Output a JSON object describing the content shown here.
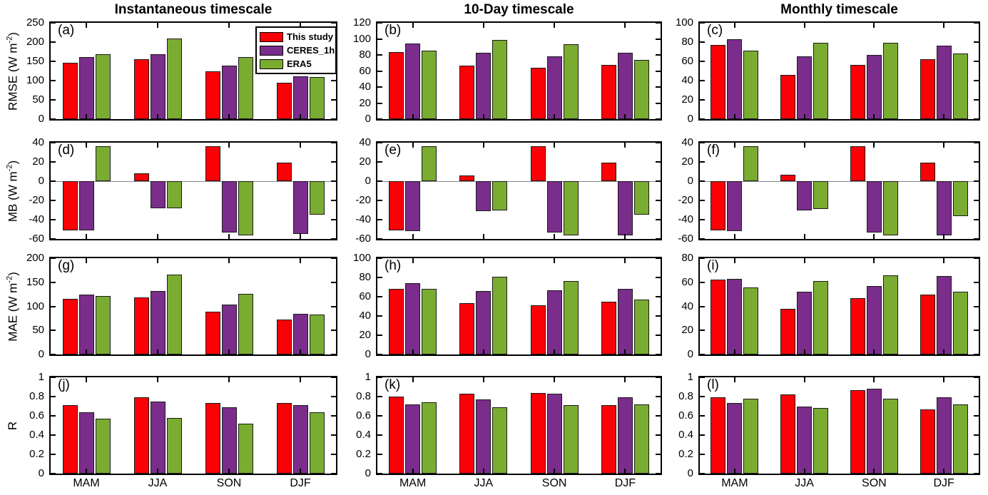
{
  "figure": {
    "columns": [
      {
        "title": "Instantaneous timescale"
      },
      {
        "title": "10-Day timescale"
      },
      {
        "title": "Monthly timescale"
      }
    ],
    "row_axis_titles": [
      {
        "text": "RMSE (W m",
        "sup": "-2",
        "end": ")"
      },
      {
        "text": "MB (W m",
        "sup": "-2",
        "end": ")"
      },
      {
        "text": "MAE (W m",
        "sup": "-2",
        "end": ")"
      },
      {
        "text": "R",
        "sup": "",
        "end": ""
      }
    ],
    "legend": {
      "position": "top-right-of-panel-a",
      "entries": [
        {
          "label": "This study",
          "color": "#fb0006"
        },
        {
          "label": "CERES_1h",
          "color": "#7a2d8b"
        },
        {
          "label": "ERA5",
          "color": "#7aac32"
        }
      ]
    }
  },
  "chart_data": [
    {
      "type": "bar",
      "label": "(a)",
      "metric": "RMSE",
      "timescale": "Instantaneous",
      "categories": [
        "MAM",
        "JJA",
        "SON",
        "DJF"
      ],
      "ylim": [
        0,
        250
      ],
      "yticks": [
        "0",
        "50",
        "100",
        "150",
        "200",
        "250"
      ],
      "series": [
        {
          "name": "This study",
          "values": [
            147,
            156,
            124,
            94
          ]
        },
        {
          "name": "CERES_1h",
          "values": [
            161,
            168,
            138,
            112
          ]
        },
        {
          "name": "ERA5",
          "values": [
            168,
            209,
            162,
            109
          ]
        }
      ]
    },
    {
      "type": "bar",
      "label": "(b)",
      "metric": "RMSE",
      "timescale": "10-Day",
      "categories": [
        "MAM",
        "JJA",
        "SON",
        "DJF"
      ],
      "ylim": [
        0,
        120
      ],
      "yticks": [
        "0",
        "20",
        "40",
        "60",
        "80",
        "100",
        "120"
      ],
      "series": [
        {
          "name": "This study",
          "values": [
            84,
            67,
            64,
            68
          ]
        },
        {
          "name": "CERES_1h",
          "values": [
            94,
            83,
            78,
            83
          ]
        },
        {
          "name": "ERA5",
          "values": [
            85,
            99,
            93,
            74
          ]
        }
      ]
    },
    {
      "type": "bar",
      "label": "(c)",
      "metric": "RMSE",
      "timescale": "Monthly",
      "categories": [
        "MAM",
        "JJA",
        "SON",
        "DJF"
      ],
      "ylim": [
        0,
        100
      ],
      "yticks": [
        "0",
        "20",
        "40",
        "60",
        "80",
        "100"
      ],
      "series": [
        {
          "name": "This study",
          "values": [
            77,
            46,
            56,
            62
          ]
        },
        {
          "name": "CERES_1h",
          "values": [
            83,
            65,
            67,
            76
          ]
        },
        {
          "name": "ERA5",
          "values": [
            71,
            79,
            79,
            68
          ]
        }
      ]
    },
    {
      "type": "bar",
      "label": "(d)",
      "metric": "MB",
      "timescale": "Instantaneous",
      "categories": [
        "MAM",
        "JJA",
        "SON",
        "DJF"
      ],
      "ylim": [
        -60,
        40
      ],
      "yticks": [
        "-60",
        "-40",
        "-20",
        "0",
        "20",
        "40"
      ],
      "series": [
        {
          "name": "This study",
          "values": [
            -51,
            8,
            36,
            19
          ]
        },
        {
          "name": "CERES_1h",
          "values": [
            -51,
            -28,
            -53,
            -55
          ]
        },
        {
          "name": "ERA5",
          "values": [
            36,
            -28,
            -56,
            -35
          ]
        }
      ]
    },
    {
      "type": "bar",
      "label": "(e)",
      "metric": "MB",
      "timescale": "10-Day",
      "categories": [
        "MAM",
        "JJA",
        "SON",
        "DJF"
      ],
      "ylim": [
        -60,
        40
      ],
      "yticks": [
        "-60",
        "-40",
        "-20",
        "0",
        "20",
        "40"
      ],
      "series": [
        {
          "name": "This study",
          "values": [
            -51,
            6,
            36,
            19
          ]
        },
        {
          "name": "CERES_1h",
          "values": [
            -52,
            -31,
            -53,
            -56
          ]
        },
        {
          "name": "ERA5",
          "values": [
            36,
            -30,
            -56,
            -35
          ]
        }
      ]
    },
    {
      "type": "bar",
      "label": "(f)",
      "metric": "MB",
      "timescale": "Monthly",
      "categories": [
        "MAM",
        "JJA",
        "SON",
        "DJF"
      ],
      "ylim": [
        -60,
        40
      ],
      "yticks": [
        "-60",
        "-40",
        "-20",
        "0",
        "20",
        "40"
      ],
      "series": [
        {
          "name": "This study",
          "values": [
            -51,
            7,
            36,
            19
          ]
        },
        {
          "name": "CERES_1h",
          "values": [
            -52,
            -30,
            -53,
            -56
          ]
        },
        {
          "name": "ERA5",
          "values": [
            36,
            -29,
            -56,
            -36
          ]
        }
      ]
    },
    {
      "type": "bar",
      "label": "(g)",
      "metric": "MAE",
      "timescale": "Instantaneous",
      "categories": [
        "MAM",
        "JJA",
        "SON",
        "DJF"
      ],
      "ylim": [
        0,
        200
      ],
      "yticks": [
        "0",
        "50",
        "100",
        "150",
        "200"
      ],
      "series": [
        {
          "name": "This study",
          "values": [
            115,
            118,
            89,
            73
          ]
        },
        {
          "name": "CERES_1h",
          "values": [
            125,
            132,
            104,
            85
          ]
        },
        {
          "name": "ERA5",
          "values": [
            122,
            166,
            126,
            83
          ]
        }
      ]
    },
    {
      "type": "bar",
      "label": "(h)",
      "metric": "MAE",
      "timescale": "10-Day",
      "categories": [
        "MAM",
        "JJA",
        "SON",
        "DJF"
      ],
      "ylim": [
        0,
        100
      ],
      "yticks": [
        "0",
        "20",
        "40",
        "60",
        "80",
        "100"
      ],
      "series": [
        {
          "name": "This study",
          "values": [
            68,
            53,
            51,
            55
          ]
        },
        {
          "name": "CERES_1h",
          "values": [
            74,
            66,
            67,
            68
          ]
        },
        {
          "name": "ERA5",
          "values": [
            68,
            81,
            76,
            57
          ]
        }
      ]
    },
    {
      "type": "bar",
      "label": "(i)",
      "metric": "MAE",
      "timescale": "Monthly",
      "categories": [
        "MAM",
        "JJA",
        "SON",
        "DJF"
      ],
      "ylim": [
        0,
        80
      ],
      "yticks": [
        "0",
        "20",
        "40",
        "60",
        "80"
      ],
      "series": [
        {
          "name": "This study",
          "values": [
            62,
            38,
            47,
            50
          ]
        },
        {
          "name": "CERES_1h",
          "values": [
            63,
            52,
            57,
            65
          ]
        },
        {
          "name": "ERA5",
          "values": [
            56,
            61,
            66,
            52
          ]
        }
      ]
    },
    {
      "type": "bar",
      "label": "(j)",
      "metric": "R",
      "timescale": "Instantaneous",
      "categories": [
        "MAM",
        "JJA",
        "SON",
        "DJF"
      ],
      "ylim": [
        0,
        1
      ],
      "yticks": [
        "0",
        "0.2",
        "0.4",
        "0.6",
        "0.8",
        "1"
      ],
      "series": [
        {
          "name": "This study",
          "values": [
            0.71,
            0.79,
            0.73,
            0.73
          ]
        },
        {
          "name": "CERES_1h",
          "values": [
            0.64,
            0.75,
            0.69,
            0.71
          ]
        },
        {
          "name": "ERA5",
          "values": [
            0.57,
            0.58,
            0.52,
            0.64
          ]
        }
      ]
    },
    {
      "type": "bar",
      "label": "(k)",
      "metric": "R",
      "timescale": "10-Day",
      "categories": [
        "MAM",
        "JJA",
        "SON",
        "DJF"
      ],
      "ylim": [
        0,
        1
      ],
      "yticks": [
        "0",
        "0.2",
        "0.4",
        "0.6",
        "0.8",
        "1"
      ],
      "series": [
        {
          "name": "This study",
          "values": [
            0.8,
            0.83,
            0.84,
            0.71
          ]
        },
        {
          "name": "CERES_1h",
          "values": [
            0.72,
            0.77,
            0.83,
            0.79
          ]
        },
        {
          "name": "ERA5",
          "values": [
            0.74,
            0.69,
            0.71,
            0.72
          ]
        }
      ]
    },
    {
      "type": "bar",
      "label": "(l)",
      "metric": "R",
      "timescale": "Monthly",
      "categories": [
        "MAM",
        "JJA",
        "SON",
        "DJF"
      ],
      "ylim": [
        0,
        1
      ],
      "yticks": [
        "0",
        "0.2",
        "0.4",
        "0.6",
        "0.8",
        "1"
      ],
      "series": [
        {
          "name": "This study",
          "values": [
            0.79,
            0.82,
            0.87,
            0.67
          ]
        },
        {
          "name": "CERES_1h",
          "values": [
            0.73,
            0.7,
            0.88,
            0.79
          ]
        },
        {
          "name": "ERA5",
          "values": [
            0.78,
            0.68,
            0.78,
            0.72
          ]
        }
      ]
    }
  ]
}
